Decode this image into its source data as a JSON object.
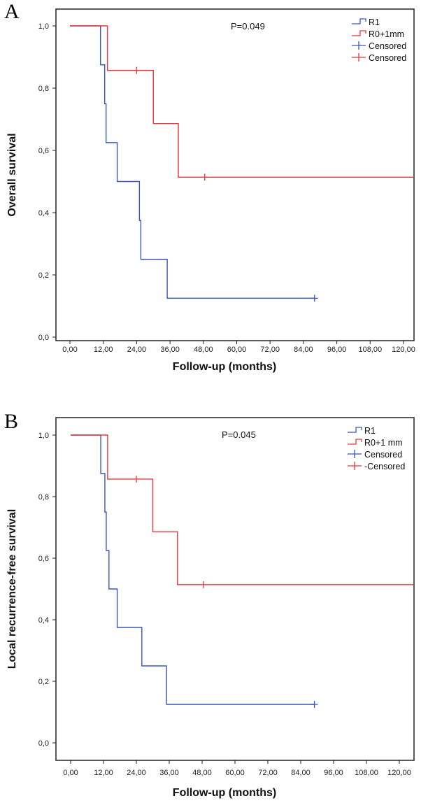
{
  "colors": {
    "r1": "#3a55c0",
    "r0": "#e8383c",
    "frame": "#222222"
  },
  "chart_data": [
    {
      "type": "line",
      "panel_label": "A",
      "title": "",
      "xlabel": "Follow-up (months)",
      "ylabel": "Overall survival",
      "annotation": "P=0.049",
      "xlim": [
        0,
        126
      ],
      "ylim": [
        0,
        1
      ],
      "x_ticks": [
        "0,00",
        "12,00",
        "24,00",
        "36,00",
        "48,00",
        "60,00",
        "72,00",
        "84,00",
        "96,00",
        "108,00",
        "120,00"
      ],
      "x_tick_values": [
        0,
        12,
        24,
        36,
        48,
        60,
        72,
        84,
        96,
        108,
        120
      ],
      "y_ticks": [
        "0,0",
        "0,2",
        "0,4",
        "0,6",
        "0,8",
        "1,0"
      ],
      "y_tick_values": [
        0,
        0.2,
        0.4,
        0.6,
        0.8,
        1.0
      ],
      "legend": [
        "R1",
        "R0+1mm",
        "Censored",
        "Censored"
      ],
      "legend_position": "top-right",
      "series": [
        {
          "name": "R1",
          "steps": [
            [
              0,
              1
            ],
            [
              11,
              0.875
            ],
            [
              12.5,
              0.75
            ],
            [
              13,
              0.625
            ],
            [
              17,
              0.5
            ],
            [
              25,
              0.375
            ],
            [
              25.5,
              0.25
            ],
            [
              35,
              0.125
            ]
          ],
          "end": 88,
          "censored": [
            [
              88,
              0.125
            ]
          ]
        },
        {
          "name": "R0+1mm",
          "steps": [
            [
              0,
              1
            ],
            [
              13.5,
              0.857
            ],
            [
              30,
              0.686
            ],
            [
              39,
              0.514
            ]
          ],
          "end": 126,
          "censored": [
            [
              24,
              0.857
            ],
            [
              48.5,
              0.514
            ]
          ]
        }
      ]
    },
    {
      "type": "line",
      "panel_label": "B",
      "title": "",
      "xlabel": "Follow-up (months)",
      "ylabel": "Local recurrence-free  survival",
      "annotation": "P=0.045",
      "xlim": [
        0,
        126
      ],
      "ylim": [
        0,
        1
      ],
      "x_ticks": [
        "0,00",
        "12,00",
        "24,00",
        "36,00",
        "48,00",
        "60,00",
        "72,00",
        "84,00",
        "96,00",
        "108,00",
        "120,00"
      ],
      "x_tick_values": [
        0,
        12,
        24,
        36,
        48,
        60,
        72,
        84,
        96,
        108,
        120
      ],
      "y_ticks": [
        "0,0",
        "0,2",
        "0,4",
        "0,6",
        "0,8",
        "1,0"
      ],
      "y_tick_values": [
        0,
        0.2,
        0.4,
        0.6,
        0.8,
        1.0
      ],
      "legend": [
        "R1",
        "R0+1 mm",
        "Censored",
        "-Censored"
      ],
      "legend_position": "top-right",
      "series": [
        {
          "name": "R1",
          "steps": [
            [
              0,
              1
            ],
            [
              11,
              0.875
            ],
            [
              12.5,
              0.75
            ],
            [
              13,
              0.625
            ],
            [
              14,
              0.5
            ],
            [
              17,
              0.375
            ],
            [
              26,
              0.25
            ],
            [
              35,
              0.125
            ]
          ],
          "end": 89,
          "censored": [
            [
              89,
              0.125
            ]
          ]
        },
        {
          "name": "R0+1 mm",
          "steps": [
            [
              0,
              1
            ],
            [
              13.5,
              0.857
            ],
            [
              30,
              0.686
            ],
            [
              39,
              0.514
            ]
          ],
          "end": 126,
          "censored": [
            [
              24,
              0.857
            ],
            [
              48.5,
              0.514
            ]
          ]
        }
      ]
    }
  ]
}
